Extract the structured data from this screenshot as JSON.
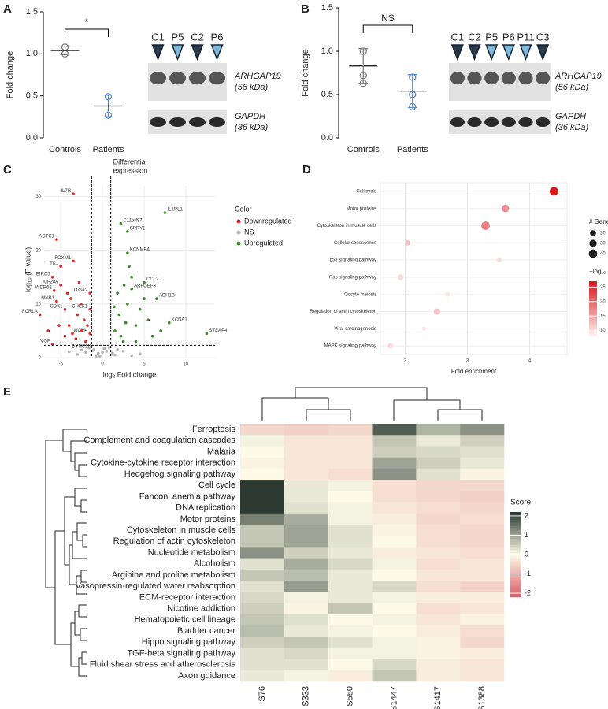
{
  "chart_data": [
    {
      "panel": "A",
      "type": "strip",
      "ylabel": "Fold change",
      "categories": [
        "Controls",
        "Patients"
      ],
      "points": [
        [
          1.0,
          1.08
        ],
        [
          0.27,
          0.49
        ]
      ],
      "means": [
        1.04,
        0.38
      ],
      "errors": [
        0.05,
        0.13
      ],
      "colors": [
        "#808080",
        "#5b8cc4"
      ],
      "ylim": [
        0,
        1.5
      ],
      "yticks": [
        {
          "value": 0,
          "label": "0.0"
        },
        {
          "value": 0.5,
          "label": "0.5"
        },
        {
          "value": 1,
          "label": "1.0"
        },
        {
          "value": 1.5,
          "label": "1.5"
        }
      ],
      "significance": "*",
      "blot": {
        "lanes": [
          "C1",
          "P5",
          "C2",
          "P6"
        ],
        "lane_colors": [
          "#2b3a4a",
          "#7fb8d8",
          "#2b3a4a",
          "#7fb8d8"
        ],
        "proteins": [
          "ARHGAP19",
          "GAPDH"
        ],
        "sizes": [
          "(56 kDa)",
          "(36 kDa)"
        ]
      }
    },
    {
      "panel": "B",
      "type": "strip",
      "ylabel": "Fold change",
      "categories": [
        "Controls",
        "Patients"
      ],
      "points": [
        [
          1.0,
          0.72,
          0.63
        ],
        [
          0.7,
          0.5,
          0.36
        ]
      ],
      "means": [
        0.83,
        0.54
      ],
      "errors": [
        0.2,
        0.19
      ],
      "colors": [
        "#808080",
        "#5b8cc4"
      ],
      "ylim": [
        0,
        1.5
      ],
      "yticks": [
        {
          "value": 0,
          "label": "0.0"
        },
        {
          "value": 0.5,
          "label": "0.5"
        },
        {
          "value": 1,
          "label": "1.0"
        },
        {
          "value": 1.5,
          "label": "1.5"
        }
      ],
      "significance": "NS",
      "blot": {
        "lanes": [
          "C1",
          "C2",
          "P5",
          "P6",
          "P11",
          "C3"
        ],
        "lane_colors": [
          "#2b3a4a",
          "#2b3a4a",
          "#7fb8d8",
          "#7fb8d8",
          "#7fb8d8",
          "#2b3a4a"
        ],
        "proteins": [
          "ARHGAP19",
          "GAPDH"
        ],
        "sizes": [
          "(56 kDa)",
          "(36 kDa)"
        ]
      }
    },
    {
      "panel": "C",
      "type": "volcano",
      "xlabel": "log₂ Fold change",
      "ylabel": "−log₁₀ (P value)",
      "annotation": [
        "Differential",
        "expression"
      ],
      "legend_title": "Color",
      "xlim": [
        -7,
        13.5
      ],
      "ylim": [
        0,
        32
      ],
      "xticks": [
        -5,
        0,
        5,
        10
      ],
      "yticks": [
        0,
        10,
        20,
        30
      ],
      "thresholds_x": [
        -1.3,
        1.0
      ],
      "threshold_y": 2.3,
      "series": [
        {
          "name": "Downregulated",
          "color": "#e3262b",
          "x": [
            -3.5,
            -5.5,
            -3.5,
            -5,
            -6,
            -5,
            -5.8,
            -5.5,
            -4.5,
            -7.5,
            -1.5,
            -1.5,
            -6,
            -1.5,
            -2.5,
            -3,
            -4,
            -2,
            -3.8,
            -4.5,
            -2.8,
            -6.5,
            -3.2,
            -2.2,
            -5.2,
            -2.6,
            -3.6,
            -4.2,
            -1.8
          ],
          "y": [
            30.5,
            22,
            18,
            17,
            15,
            13.5,
            12.5,
            10.5,
            9,
            8,
            12,
            4.5,
            2.5,
            9,
            5,
            8,
            6,
            3,
            11,
            4,
            14,
            5,
            3.5,
            7,
            6,
            10,
            4.5,
            12,
            6
          ],
          "labels": [
            "IL7R",
            "ACTC1",
            "FOXM1",
            "TK1",
            "BIRC5",
            "KIF20A",
            "WDR62",
            "LMNB1",
            "CDK1",
            "FCRLA",
            "ITGA2",
            "MCM4",
            "VGF",
            "CHEK1",
            null,
            null,
            null,
            null,
            null,
            null,
            null,
            null,
            null,
            null,
            null,
            null,
            null,
            null,
            null
          ]
        },
        {
          "name": "NS",
          "color": "#b3b3b3",
          "x": [
            -1,
            0.5,
            -0.5,
            1.5,
            -2,
            0.8,
            -0.3,
            2.5,
            -3,
            0.2,
            -1.2,
            1.2,
            3.5,
            -4,
            0.0,
            -0.8,
            1.8,
            -1.6,
            4.5,
            -2.5
          ],
          "y": [
            1.5,
            1.2,
            0.8,
            0.5,
            1.0,
            1.9,
            0.3,
            1.2,
            0.6,
            1.7,
            1.3,
            0.9,
            0.4,
            1.1,
            1.0,
            0.2,
            1.5,
            1.8,
            0.7,
            1.4
          ],
          "labels": [
            "DYNC1I1",
            null,
            null,
            null,
            null,
            null,
            null,
            null,
            null,
            null,
            null,
            null,
            null,
            null,
            null,
            null,
            null,
            null,
            null,
            null
          ]
        },
        {
          "name": "Upregulated",
          "color": "#3d8a2c",
          "x": [
            2.2,
            3,
            7.5,
            3,
            5,
            3.5,
            6.5,
            8,
            12.5,
            1.5,
            2,
            2.5,
            3,
            4,
            4.5,
            1.8,
            2.2,
            5.5,
            3.5,
            6,
            2.8,
            4,
            1.4,
            7,
            3.2,
            5,
            2.6
          ],
          "y": [
            25,
            23.5,
            27,
            19.5,
            14,
            12.8,
            11,
            6.5,
            4.5,
            5,
            8,
            3,
            10,
            6,
            9,
            12,
            4,
            7,
            15,
            4,
            6.5,
            3,
            9.5,
            5,
            17,
            11,
            13.5
          ],
          "labels": [
            "C11orf87",
            "SPRY1",
            "IL1RL1",
            "KCNMB4",
            "CCL2",
            "ARFGEF3",
            "ADH1B",
            "KCNA1",
            "STEAP4",
            null,
            null,
            null,
            null,
            null,
            null,
            null,
            null,
            null,
            null,
            null,
            null,
            null,
            null,
            null,
            null,
            null,
            null
          ]
        }
      ]
    },
    {
      "panel": "D",
      "type": "dot",
      "xlabel": "Fold enrichment",
      "categories": [
        "Cell cycle",
        "Motor proteins",
        "Cytoskeleton in muscle cells",
        "Cellular senescence",
        "p53 signaling pathway",
        "Ras signaling pathway",
        "Oocyte meiosis",
        "Regulation of actin cytoskeleton",
        "Viral carcinogenesis",
        "MAPK signaling pathway"
      ],
      "x": [
        4.39,
        3.61,
        3.29,
        2.04,
        3.51,
        1.92,
        2.68,
        2.51,
        2.3,
        1.76
      ],
      "sizes": [
        40,
        30,
        40,
        15,
        12,
        20,
        12,
        22,
        10,
        15
      ],
      "pvalues": [
        27,
        17,
        18,
        12,
        10,
        10,
        9,
        12,
        9,
        10
      ],
      "xlim": [
        1.6,
        4.6
      ],
      "xticks": [
        2,
        3,
        4
      ],
      "size_title": "# Genes",
      "size_ticks": [
        20,
        30,
        40
      ],
      "color_title": "−log₁₀ (P)",
      "color_lim": [
        8,
        27
      ],
      "color_ticks": [
        10,
        15,
        20,
        25
      ],
      "colormap": [
        "#fbf0f0",
        "#d7191c"
      ]
    },
    {
      "panel": "E",
      "type": "heatmap",
      "legend_title": "Score",
      "rows": [
        "Ferroptosis",
        "Complement and coagulation cascades",
        "Malaria",
        "Cytokine-cytokine receptor interaction",
        "Hedgehog signaling pathway",
        "Cell cycle",
        "Fanconi anemia pathway",
        "DNA replication",
        "Motor proteins",
        "Cytoskeleton in muscle cells",
        "Regulation of actin cytoskeleton",
        "Nucleotide metabolism",
        "Alcoholism",
        "Arginine and proline metabolism",
        "Vasopressin-regulated water reabsorption",
        "ECM-receptor interaction",
        "Nicotine addiction",
        "Hematopoietic cell lineage",
        "Bladder cancer",
        "Hippo signaling pathway",
        "TGF-beta signaling pathway",
        "Fluid shear stress and atherosclerosis",
        "Axon guidance"
      ],
      "columns": [
        "S76",
        "S333",
        "S550",
        "S1447",
        "S1417",
        "S1388"
      ],
      "values": [
        [
          -0.5,
          -0.6,
          -0.5,
          1.8,
          0.8,
          1.2
        ],
        [
          0.1,
          -0.3,
          -0.3,
          0.6,
          0.2,
          0.5
        ],
        [
          0.0,
          -0.3,
          -0.3,
          0.5,
          0.4,
          0.3
        ],
        [
          -0.1,
          -0.3,
          -0.3,
          1.0,
          0.5,
          0.2
        ],
        [
          0.0,
          -0.3,
          -0.4,
          1.2,
          0.3,
          -0.1
        ],
        [
          2.3,
          0.2,
          0.1,
          -0.4,
          -0.5,
          -0.5
        ],
        [
          2.4,
          0.2,
          0.0,
          -0.4,
          -0.5,
          -0.6
        ],
        [
          2.4,
          0.3,
          0.1,
          -0.3,
          -0.4,
          -0.5
        ],
        [
          1.4,
          0.9,
          0.1,
          -0.2,
          -0.5,
          -0.4
        ],
        [
          0.6,
          1.0,
          0.3,
          -0.1,
          -0.4,
          -0.5
        ],
        [
          0.6,
          1.0,
          0.3,
          0.0,
          -0.4,
          -0.5
        ],
        [
          1.2,
          0.5,
          0.2,
          -0.2,
          -0.3,
          -0.4
        ],
        [
          0.3,
          0.9,
          0.4,
          0.1,
          -0.4,
          -0.3
        ],
        [
          0.6,
          0.7,
          0.2,
          0.0,
          -0.3,
          -0.3
        ],
        [
          0.3,
          1.1,
          0.2,
          0.4,
          -0.4,
          -0.6
        ],
        [
          0.4,
          0.1,
          0.2,
          0.1,
          -0.2,
          -0.2
        ],
        [
          0.5,
          -0.1,
          0.6,
          0.0,
          -0.4,
          -0.3
        ],
        [
          0.6,
          0.3,
          0.0,
          0.1,
          -0.3,
          -0.1
        ],
        [
          0.7,
          0.2,
          0.1,
          0.0,
          -0.2,
          -0.4
        ],
        [
          0.5,
          0.6,
          0.3,
          0.1,
          -0.1,
          -0.5
        ],
        [
          0.3,
          0.4,
          0.1,
          0.1,
          -0.1,
          -0.2
        ],
        [
          0.3,
          0.3,
          0.0,
          0.4,
          -0.2,
          -0.3
        ],
        [
          0.2,
          0.1,
          -0.2,
          0.6,
          -0.2,
          -0.3
        ]
      ],
      "clim": [
        -2.2,
        2.2
      ],
      "cticks": [
        -2,
        -1,
        0,
        1,
        2
      ],
      "colormap": [
        "#d6606b",
        "#fdfbe8",
        "#2c3a32"
      ]
    }
  ]
}
